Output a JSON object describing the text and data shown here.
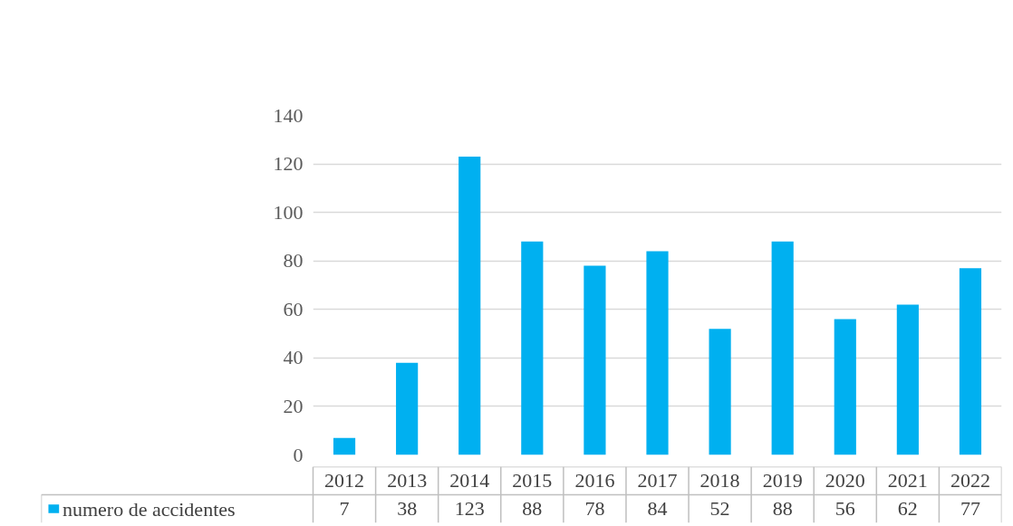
{
  "chart_data": {
    "type": "bar",
    "categories": [
      "2012",
      "2013",
      "2014",
      "2015",
      "2016",
      "2017",
      "2018",
      "2019",
      "2020",
      "2021",
      "2022"
    ],
    "series": [
      {
        "name": "numero de accidentes",
        "color": "#00b0f0",
        "values": [
          7,
          38,
          123,
          88,
          78,
          84,
          52,
          88,
          56,
          62,
          77
        ]
      }
    ],
    "ylim": [
      0,
      140
    ],
    "yticks": [
      0,
      20,
      40,
      60,
      80,
      100,
      120,
      140
    ],
    "grid": "y",
    "legend": "bottom left",
    "data_labels": true
  }
}
